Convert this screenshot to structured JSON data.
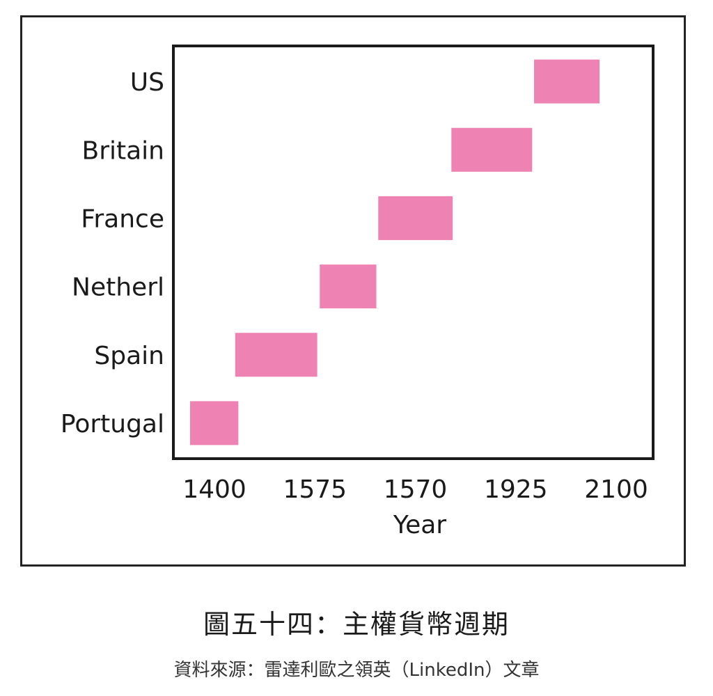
{
  "chart_data": {
    "type": "bar",
    "orientation": "horizontal-range",
    "xlabel": "Year",
    "x_tick_labels": [
      "1400",
      "1575",
      "1570",
      "1925",
      "2100"
    ],
    "xlim": [
      1380,
      2130
    ],
    "categories": [
      "US",
      "Britain",
      "France",
      "Netherl",
      "Spain",
      "Portugal"
    ],
    "ranges": [
      {
        "category": "US",
        "start": 1945,
        "end": 2048
      },
      {
        "category": "Britain",
        "start": 1815,
        "end": 1942
      },
      {
        "category": "France",
        "start": 1700,
        "end": 1817
      },
      {
        "category": "Netherl",
        "start": 1608,
        "end": 1697
      },
      {
        "category": "Spain",
        "start": 1475,
        "end": 1604
      },
      {
        "category": "Portugal",
        "start": 1377,
        "end": 1480
      }
    ],
    "bar_color": "#ee82b2",
    "grid": false,
    "legend": "none"
  },
  "captions": {
    "figure": "圖五十四：主權貨幣週期",
    "source": "資料來源：雷達利歐之領英（LinkedIn）文章"
  }
}
